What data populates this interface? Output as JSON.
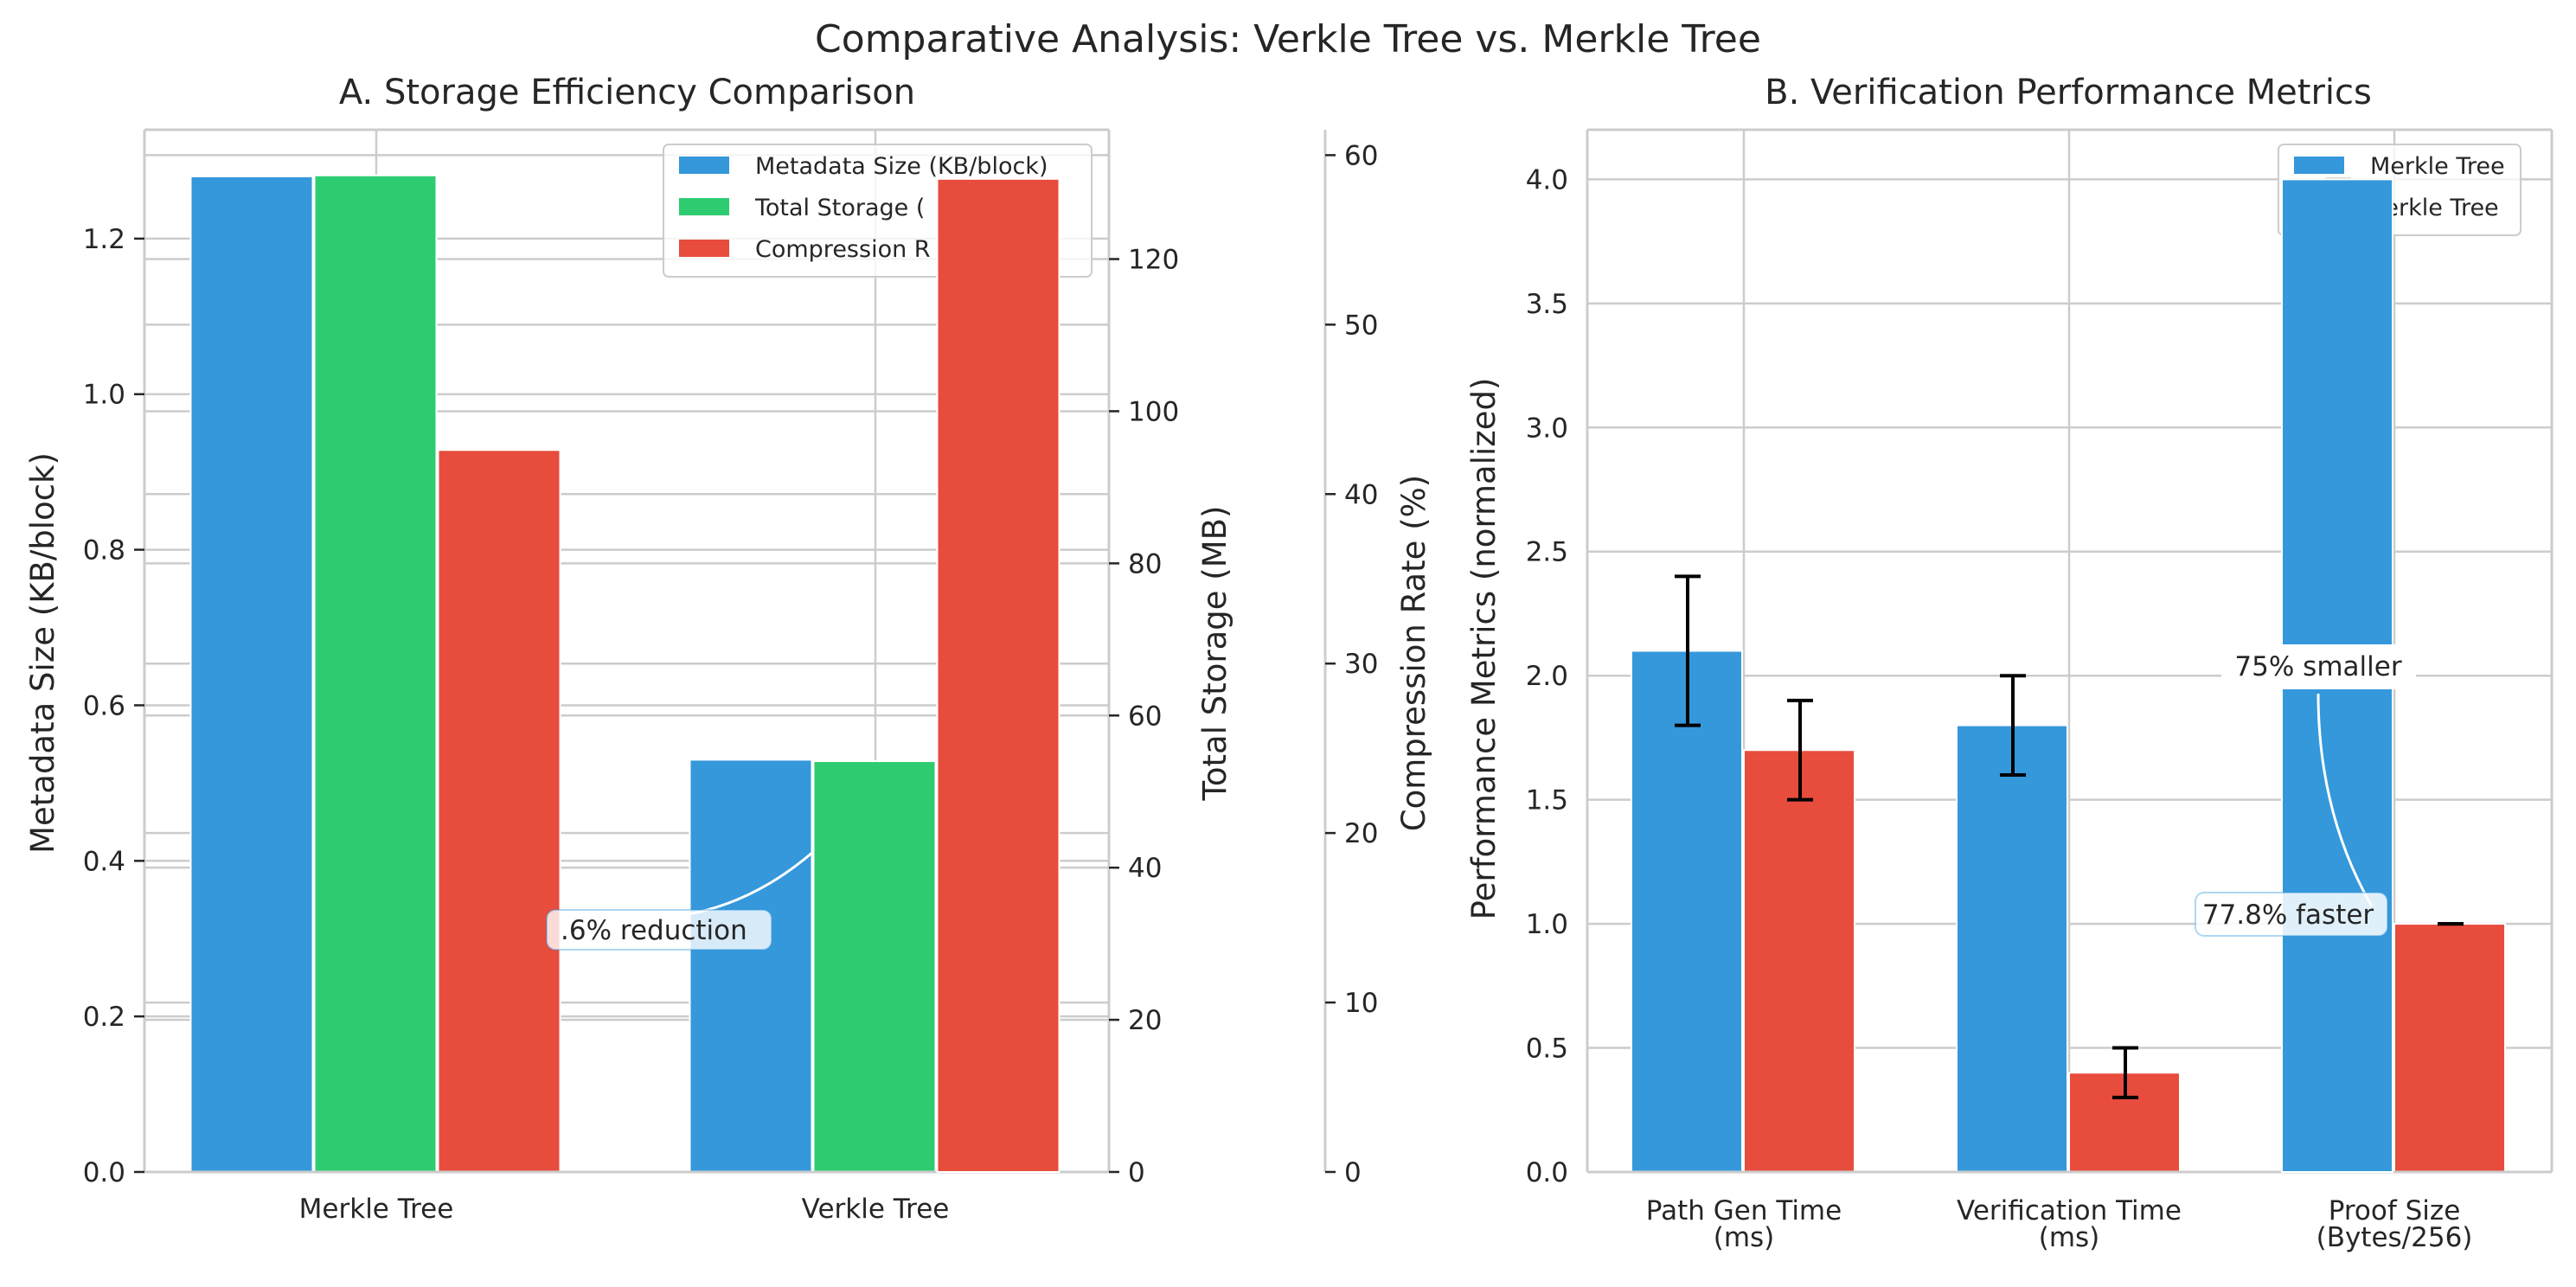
{
  "suptitle": "Comparative Analysis: Verkle Tree vs. Merkle Tree",
  "colors": {
    "blue": "#3498db",
    "green": "#2ecc71",
    "red": "#e74c3c",
    "grid": "#cccccc",
    "errorbar": "#000000"
  },
  "panel_a": {
    "title": "A. Storage Efficiency Comparison",
    "ylabel_left": "Metadata Size (KB/block)",
    "ylabel_right1": "Total Storage (MB)",
    "ylabel_right2": "Compression Rate (%)",
    "annotation": ".6% reduction",
    "legend": {
      "metadata": "Metadata Size (KB/block)",
      "storage": "Total Storage (",
      "compression": "Compression R"
    }
  },
  "panel_b": {
    "title": "B. Verification Performance Metrics",
    "ylabel": "Performance Metrics (normalized)",
    "annotation_smaller": "75% smaller",
    "annotation_faster": "77.8% faster",
    "legend": {
      "merkle": "Merkle Tree",
      "verkle": "Verkle Tree"
    }
  },
  "chart_data": [
    {
      "type": "bar",
      "title": "A. Storage Efficiency Comparison",
      "categories": [
        "Merkle Tree",
        "Verkle Tree"
      ],
      "series": [
        {
          "name": "Metadata Size (KB/block)",
          "axis": "left",
          "values": [
            1.28,
            0.53
          ],
          "color": "#3498db"
        },
        {
          "name": "Total Storage (MB)",
          "axis": "right1",
          "values": [
            131,
            54
          ],
          "color": "#2ecc71"
        },
        {
          "name": "Compression Rate (%)",
          "axis": "right2",
          "values": [
            42.6,
            58.6
          ],
          "color": "#e74c3c"
        }
      ],
      "ylabel": "Metadata Size (KB/block)",
      "ylim": [
        0,
        1.34
      ],
      "yticks": [
        0.0,
        0.2,
        0.4,
        0.6,
        0.8,
        1.0,
        1.2
      ],
      "y2label": "Total Storage (MB)",
      "y2lim": [
        0,
        137
      ],
      "y2ticks": [
        0,
        20,
        40,
        60,
        80,
        100,
        120
      ],
      "y3label": "Compression Rate (%)",
      "y3lim": [
        0,
        61.5
      ],
      "y3ticks": [
        0,
        10,
        20,
        30,
        40,
        50,
        60
      ],
      "legend": "top-right",
      "grid": true
    },
    {
      "type": "bar",
      "title": "B. Verification Performance Metrics",
      "categories": [
        "Path Gen Time\n(ms)",
        "Verification Time\n(ms)",
        "Proof Size\n(Bytes/256)"
      ],
      "series": [
        {
          "name": "Merkle Tree",
          "values": [
            2.1,
            1.8,
            4.0
          ],
          "errors": [
            0.3,
            0.2,
            0
          ],
          "color": "#3498db"
        },
        {
          "name": "Verkle Tree",
          "values": [
            1.7,
            0.4,
            1.0
          ],
          "errors": [
            0.2,
            0.1,
            0
          ],
          "color": "#e74c3c"
        }
      ],
      "ylabel": "Performance Metrics (normalized)",
      "ylim": [
        0,
        4.2
      ],
      "yticks": [
        0.0,
        0.5,
        1.0,
        1.5,
        2.0,
        2.5,
        3.0,
        3.5,
        4.0
      ],
      "legend": "top-right",
      "grid": true
    }
  ]
}
